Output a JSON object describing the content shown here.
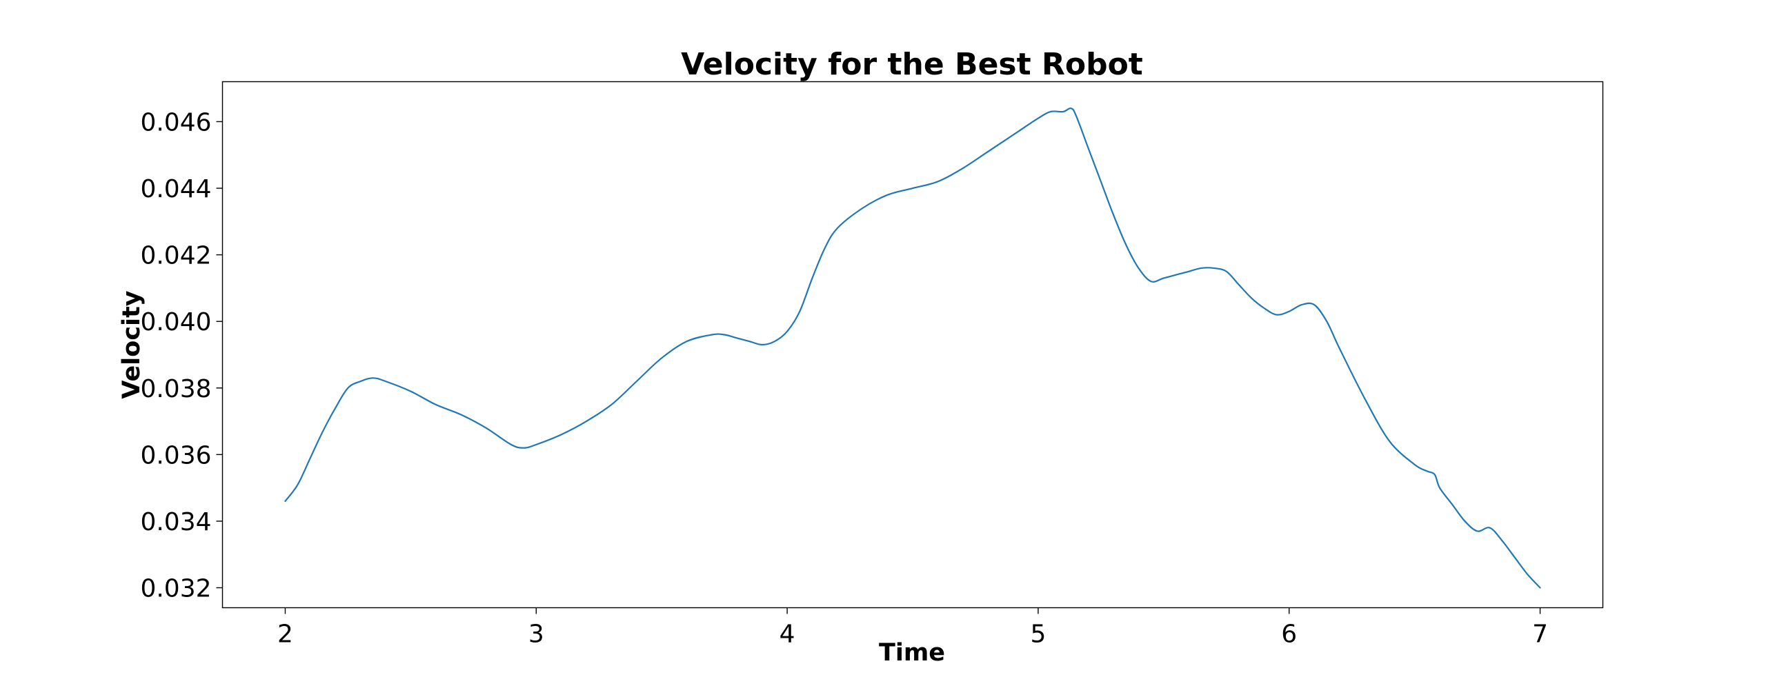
{
  "chart_data": {
    "type": "line",
    "title": "Velocity for the Best Robot",
    "xlabel": "Time",
    "ylabel": "Velocity",
    "xlim": [
      1.75,
      7.25
    ],
    "ylim": [
      0.0314,
      0.0472
    ],
    "xticks": [
      2,
      3,
      4,
      5,
      6,
      7
    ],
    "xtick_labels": [
      "2",
      "3",
      "4",
      "5",
      "6",
      "7"
    ],
    "yticks": [
      0.032,
      0.034,
      0.036,
      0.038,
      0.04,
      0.042,
      0.044,
      0.046
    ],
    "ytick_labels": [
      "0.032",
      "0.034",
      "0.036",
      "0.038",
      "0.040",
      "0.042",
      "0.044",
      "0.046"
    ],
    "grid": false,
    "line_color": "#1f77b4",
    "series": [
      {
        "x": [
          2.0,
          2.05,
          2.1,
          2.15,
          2.2,
          2.25,
          2.3,
          2.35,
          2.4,
          2.5,
          2.6,
          2.7,
          2.8,
          2.9,
          2.95,
          3.0,
          3.1,
          3.2,
          3.3,
          3.4,
          3.5,
          3.6,
          3.7,
          3.75,
          3.8,
          3.85,
          3.9,
          3.95,
          4.0,
          4.05,
          4.1,
          4.15,
          4.2,
          4.3,
          4.4,
          4.5,
          4.6,
          4.7,
          4.8,
          4.9,
          5.0,
          5.05,
          5.1,
          5.13,
          5.15,
          5.2,
          5.25,
          5.3,
          5.35,
          5.4,
          5.45,
          5.5,
          5.55,
          5.6,
          5.65,
          5.7,
          5.75,
          5.8,
          5.85,
          5.9,
          5.95,
          6.0,
          6.05,
          6.1,
          6.15,
          6.2,
          6.3,
          6.4,
          6.5,
          6.55,
          6.58,
          6.6,
          6.65,
          6.7,
          6.75,
          6.8,
          6.85,
          6.9,
          6.95,
          7.0
        ],
        "y": [
          0.0346,
          0.0351,
          0.0359,
          0.0367,
          0.0374,
          0.038,
          0.0382,
          0.0383,
          0.0382,
          0.0379,
          0.0375,
          0.0372,
          0.0368,
          0.0363,
          0.0362,
          0.0363,
          0.0366,
          0.037,
          0.0375,
          0.0382,
          0.0389,
          0.0394,
          0.0396,
          0.0396,
          0.0395,
          0.0394,
          0.0393,
          0.0394,
          0.0397,
          0.0403,
          0.0413,
          0.0422,
          0.0428,
          0.0434,
          0.0438,
          0.044,
          0.0442,
          0.0446,
          0.0451,
          0.0456,
          0.0461,
          0.0463,
          0.0463,
          0.0464,
          0.0462,
          0.0452,
          0.0442,
          0.0432,
          0.0423,
          0.0416,
          0.0412,
          0.0413,
          0.0414,
          0.0415,
          0.0416,
          0.0416,
          0.0415,
          0.0411,
          0.0407,
          0.0404,
          0.0402,
          0.0403,
          0.0405,
          0.0405,
          0.04,
          0.0392,
          0.0377,
          0.0364,
          0.0357,
          0.0355,
          0.0354,
          0.035,
          0.0345,
          0.034,
          0.0337,
          0.0338,
          0.0334,
          0.0329,
          0.0324,
          0.032
        ]
      }
    ]
  }
}
